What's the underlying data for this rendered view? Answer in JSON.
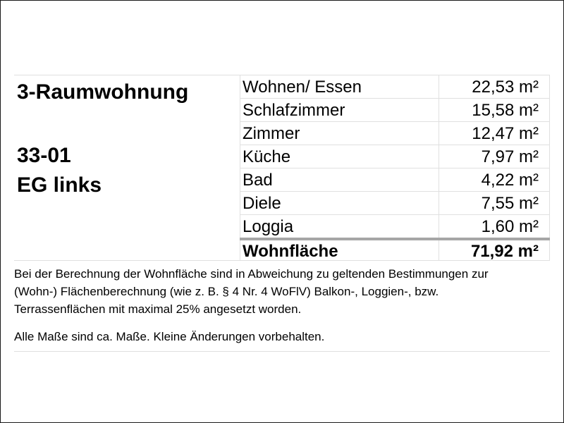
{
  "apartment": {
    "type": "3-Raumwohnung",
    "number": "33-01",
    "floor": "EG links"
  },
  "rooms": [
    {
      "name": "Wohnen/ Essen",
      "area": "22,53 m²"
    },
    {
      "name": "Schlafzimmer",
      "area": "15,58 m²"
    },
    {
      "name": "Zimmer",
      "area": "12,47 m²"
    },
    {
      "name": "Küche",
      "area": "7,97 m²"
    },
    {
      "name": "Bad",
      "area": "4,22 m²"
    },
    {
      "name": "Diele",
      "area": "7,55 m²"
    },
    {
      "name": "Loggia",
      "area": "1,60 m²"
    }
  ],
  "total": {
    "label": "Wohnfläche",
    "area": "71,92 m²"
  },
  "note": {
    "lines": [
      "Bei der Berechnung der Wohnfläche sind in Abweichung zu geltenden Bestimmungen zur",
      "(Wohn-) Flächenberechnung (wie z. B. § 4 Nr. 4 WoFlV) Balkon-, Loggien-, bzw.",
      "Terrassenflächen mit maximal 25% angesetzt worden."
    ],
    "disclaimer": "Alle Maße sind ca. Maße. Kleine Änderungen vorbehalten."
  },
  "colors": {
    "grid_line": "#e0e0e0",
    "total_separator": "#a6a6a6"
  }
}
